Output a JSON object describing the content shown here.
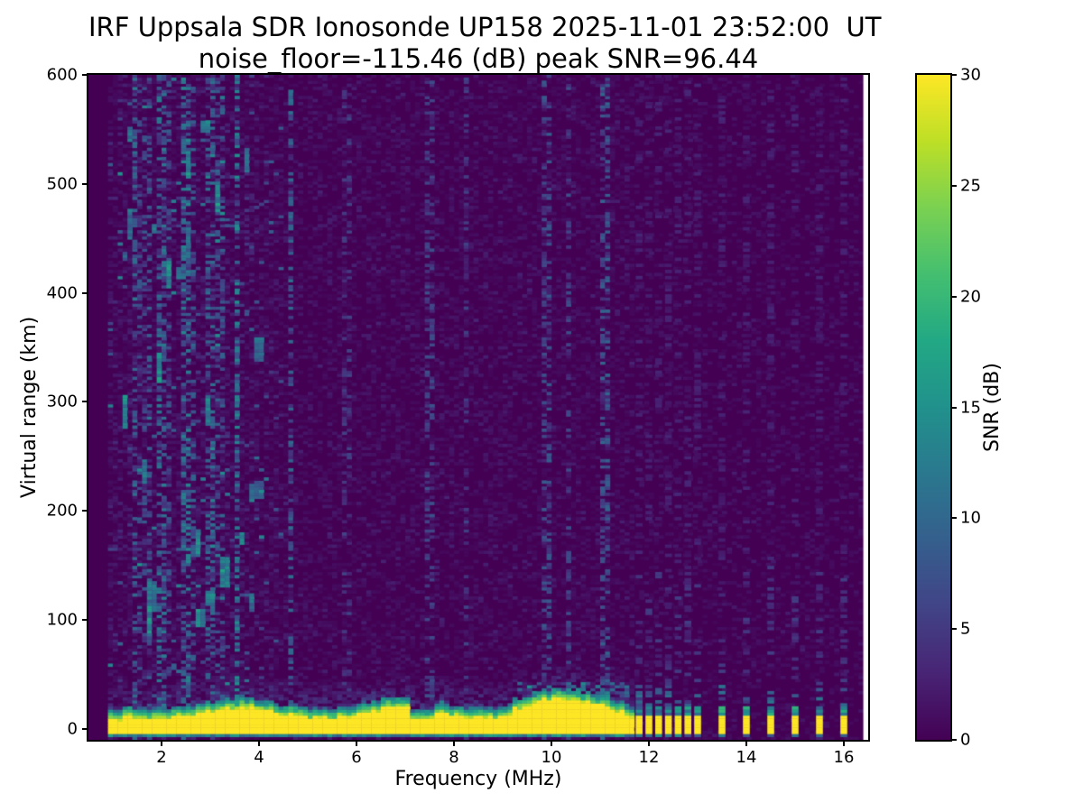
{
  "figure": {
    "title": "IRF Uppsala SDR Ionosonde UP158 2025-11-01 23:52:00  UT",
    "subtitle": "noise_floor=-115.46 (dB) peak SNR=96.44"
  },
  "chart_data": {
    "type": "heatmap",
    "title": "IRF Uppsala SDR Ionosonde UP158 2025-11-01 23:52:00  UT",
    "subtitle": "noise_floor=-115.46 (dB) peak SNR=96.44",
    "station": "UP158",
    "timestamp_ut": "2025-11-01 23:52:00",
    "noise_floor_db": -115.46,
    "peak_snr_db": 96.44,
    "xlabel": "Frequency (MHz)",
    "ylabel": "Virtual range (km)",
    "xlim": [
      0.5,
      16.5
    ],
    "ylim": [
      -10,
      600
    ],
    "x_ticks": [
      2,
      4,
      6,
      8,
      10,
      12,
      14,
      16
    ],
    "y_ticks": [
      0,
      100,
      200,
      300,
      400,
      500,
      600
    ],
    "grid": false,
    "legend": "none",
    "colorbar": {
      "label": "SNR (dB)",
      "range": [
        0,
        30
      ],
      "ticks": [
        0,
        5,
        10,
        15,
        20,
        25,
        30
      ],
      "colormap": "viridis",
      "stops": [
        "#440154",
        "#482475",
        "#414487",
        "#355f8d",
        "#2a788e",
        "#21918c",
        "#22a884",
        "#44bf70",
        "#7ad151",
        "#bddf26",
        "#fde725"
      ]
    },
    "features": {
      "ground_echo_band": {
        "freq_range_mhz": [
          0.95,
          11.66
        ],
        "range_km": [
          -5,
          25
        ],
        "peak_snr_db": 30
      },
      "pulse_freqs_mhz": [
        11.8,
        12.0,
        12.2,
        12.4,
        12.6,
        12.8,
        13.0,
        13.5,
        14.0,
        14.5,
        15.0,
        15.5,
        16.0
      ],
      "rfi_columns": [
        {
          "f": 1.45,
          "p": 0.45,
          "snr": 9
        },
        {
          "f": 1.6,
          "p": 0.35,
          "snr": 7
        },
        {
          "f": 1.75,
          "p": 0.4,
          "snr": 8
        },
        {
          "f": 2.0,
          "p": 0.5,
          "snr": 10
        },
        {
          "f": 2.15,
          "p": 0.35,
          "snr": 7
        },
        {
          "f": 2.5,
          "p": 0.55,
          "snr": 11
        },
        {
          "f": 2.65,
          "p": 0.4,
          "snr": 8
        },
        {
          "f": 3.0,
          "p": 0.4,
          "snr": 9
        },
        {
          "f": 3.2,
          "p": 0.35,
          "snr": 8
        },
        {
          "f": 3.55,
          "p": 0.55,
          "snr": 12
        },
        {
          "f": 4.65,
          "p": 0.45,
          "snr": 9
        },
        {
          "f": 5.8,
          "p": 0.3,
          "snr": 5
        },
        {
          "f": 7.5,
          "p": 0.35,
          "snr": 6
        },
        {
          "f": 8.25,
          "p": 0.3,
          "snr": 5
        },
        {
          "f": 9.9,
          "p": 0.4,
          "snr": 7
        },
        {
          "f": 10.35,
          "p": 0.3,
          "snr": 6
        },
        {
          "f": 11.1,
          "p": 0.4,
          "snr": 8
        }
      ],
      "data_gap_freq_mhz": [
        16.4,
        16.5
      ]
    },
    "render": {
      "seed": 42,
      "df_mhz": 0.1,
      "dkm": 2.8,
      "data_start_mhz": 0.5,
      "signal_start_mhz": 0.95,
      "data_end_mhz": 16.4,
      "band_end_mhz": 11.66,
      "band_core_top_km": 13,
      "band_notch_mhz": 7.35,
      "band_bulge_mhz": [
        9.2,
        11.5
      ],
      "blob_count": 26,
      "pulse_halfwidth_mhz": 0.07
    }
  }
}
